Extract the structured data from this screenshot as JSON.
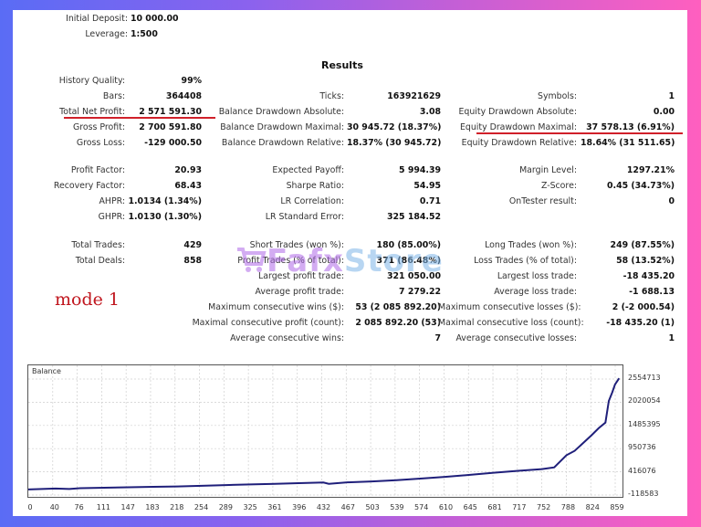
{
  "header": {
    "initial_deposit_label": "Initial Deposit:",
    "initial_deposit_value": "10 000.00",
    "leverage_label": "Leverage:",
    "leverage_value": "1:500"
  },
  "results_title": "Results",
  "col1": [
    {
      "label": "History Quality:",
      "value": "99%"
    },
    {
      "label": "Bars:",
      "value": "364408"
    },
    {
      "label": "Total Net Profit:",
      "value": "2 571 591.30"
    },
    {
      "label": "Gross Profit:",
      "value": "2 700 591.80"
    },
    {
      "label": "Gross Loss:",
      "value": "-129 000.50"
    },
    {
      "label": "Profit Factor:",
      "value": "20.93"
    },
    {
      "label": "Recovery Factor:",
      "value": "68.43"
    },
    {
      "label": "AHPR:",
      "value": "1.0134 (1.34%)"
    },
    {
      "label": "GHPR:",
      "value": "1.0130 (1.30%)"
    },
    {
      "label": "Total Trades:",
      "value": "429"
    },
    {
      "label": "Total Deals:",
      "value": "858"
    }
  ],
  "col2": [
    {
      "label": "Ticks:",
      "value": "163921629"
    },
    {
      "label": "Balance Drawdown Absolute:",
      "value": "3.08"
    },
    {
      "label": "Balance Drawdown Maximal:",
      "value": "30 945.72 (18.37%)"
    },
    {
      "label": "Balance Drawdown Relative:",
      "value": "18.37% (30 945.72)"
    },
    {
      "label": "Expected Payoff:",
      "value": "5 994.39"
    },
    {
      "label": "Sharpe Ratio:",
      "value": "54.95"
    },
    {
      "label": "LR Correlation:",
      "value": "0.71"
    },
    {
      "label": "LR Standard Error:",
      "value": "325 184.52"
    },
    {
      "label": "Short Trades (won %):",
      "value": "180 (85.00%)"
    },
    {
      "label": "Profit Trades (% of total):",
      "value": "371 (86.48%)"
    },
    {
      "label": "Largest profit trade:",
      "value": "321 050.00"
    },
    {
      "label": "Average profit trade:",
      "value": "7 279.22"
    },
    {
      "label": "Maximum consecutive wins ($):",
      "value": "53 (2 085 892.20)"
    },
    {
      "label": "Maximal consecutive profit (count):",
      "value": "2 085 892.20 (53)"
    },
    {
      "label": "Average consecutive wins:",
      "value": "7"
    }
  ],
  "col3": [
    {
      "label": "Symbols:",
      "value": "1"
    },
    {
      "label": "Equity Drawdown Absolute:",
      "value": "0.00"
    },
    {
      "label": "Equity Drawdown Maximal:",
      "value": "37 578.13 (6.91%)"
    },
    {
      "label": "Equity Drawdown Relative:",
      "value": "18.64% (31 511.65)"
    },
    {
      "label": "Margin Level:",
      "value": "1297.21%"
    },
    {
      "label": "Z-Score:",
      "value": "0.45 (34.73%)"
    },
    {
      "label": "OnTester result:",
      "value": "0"
    },
    {
      "label": "Long Trades (won %):",
      "value": "249 (87.55%)"
    },
    {
      "label": "Loss Trades (% of total):",
      "value": "58 (13.52%)"
    },
    {
      "label": "Largest loss trade:",
      "value": "-18 435.20"
    },
    {
      "label": "Average loss trade:",
      "value": "-1 688.13"
    },
    {
      "label": "Maximum consecutive losses ($):",
      "value": "2 (-2 000.54)"
    },
    {
      "label": "Maximal consecutive loss (count):",
      "value": "-18 435.20 (1)"
    },
    {
      "label": "Average consecutive losses:",
      "value": "1"
    }
  ],
  "annotation": {
    "text": "mode 1",
    "color": "#c0161e"
  },
  "watermark": {
    "part1": "Fafx",
    "part2": "Store"
  },
  "chart_data": {
    "type": "line",
    "title": "Balance",
    "xlabel": "",
    "ylabel": "",
    "x_ticks": [
      "0",
      "40",
      "76",
      "111",
      "147",
      "183",
      "218",
      "254",
      "289",
      "325",
      "361",
      "396",
      "432",
      "467",
      "503",
      "539",
      "574",
      "610",
      "645",
      "681",
      "717",
      "752",
      "788",
      "824",
      "859"
    ],
    "y_ticks": [
      "2554713",
      "2020054",
      "1485395",
      "950736",
      "416076",
      "-118583"
    ],
    "ylim": [
      -118583,
      2554713
    ],
    "xlim": [
      0,
      870
    ],
    "grid": true,
    "line_color": "#1f1f7a",
    "series": [
      {
        "name": "Balance",
        "x": [
          0,
          40,
          60,
          76,
          111,
          147,
          183,
          218,
          254,
          289,
          325,
          361,
          396,
          432,
          440,
          467,
          503,
          539,
          574,
          610,
          645,
          681,
          717,
          752,
          770,
          788,
          800,
          824,
          835,
          845,
          850,
          855,
          859,
          865
        ],
        "values": [
          10000,
          30000,
          20000,
          40000,
          50000,
          60000,
          70000,
          80000,
          95000,
          110000,
          125000,
          140000,
          155000,
          170000,
          140000,
          175000,
          195000,
          225000,
          260000,
          300000,
          345000,
          395000,
          440000,
          480000,
          520000,
          800000,
          900000,
          1250000,
          1420000,
          1550000,
          2050000,
          2250000,
          2430000,
          2571591
        ]
      }
    ]
  },
  "colors": {
    "accent_underline": "#d0202a",
    "line": "#1f1f7a"
  }
}
